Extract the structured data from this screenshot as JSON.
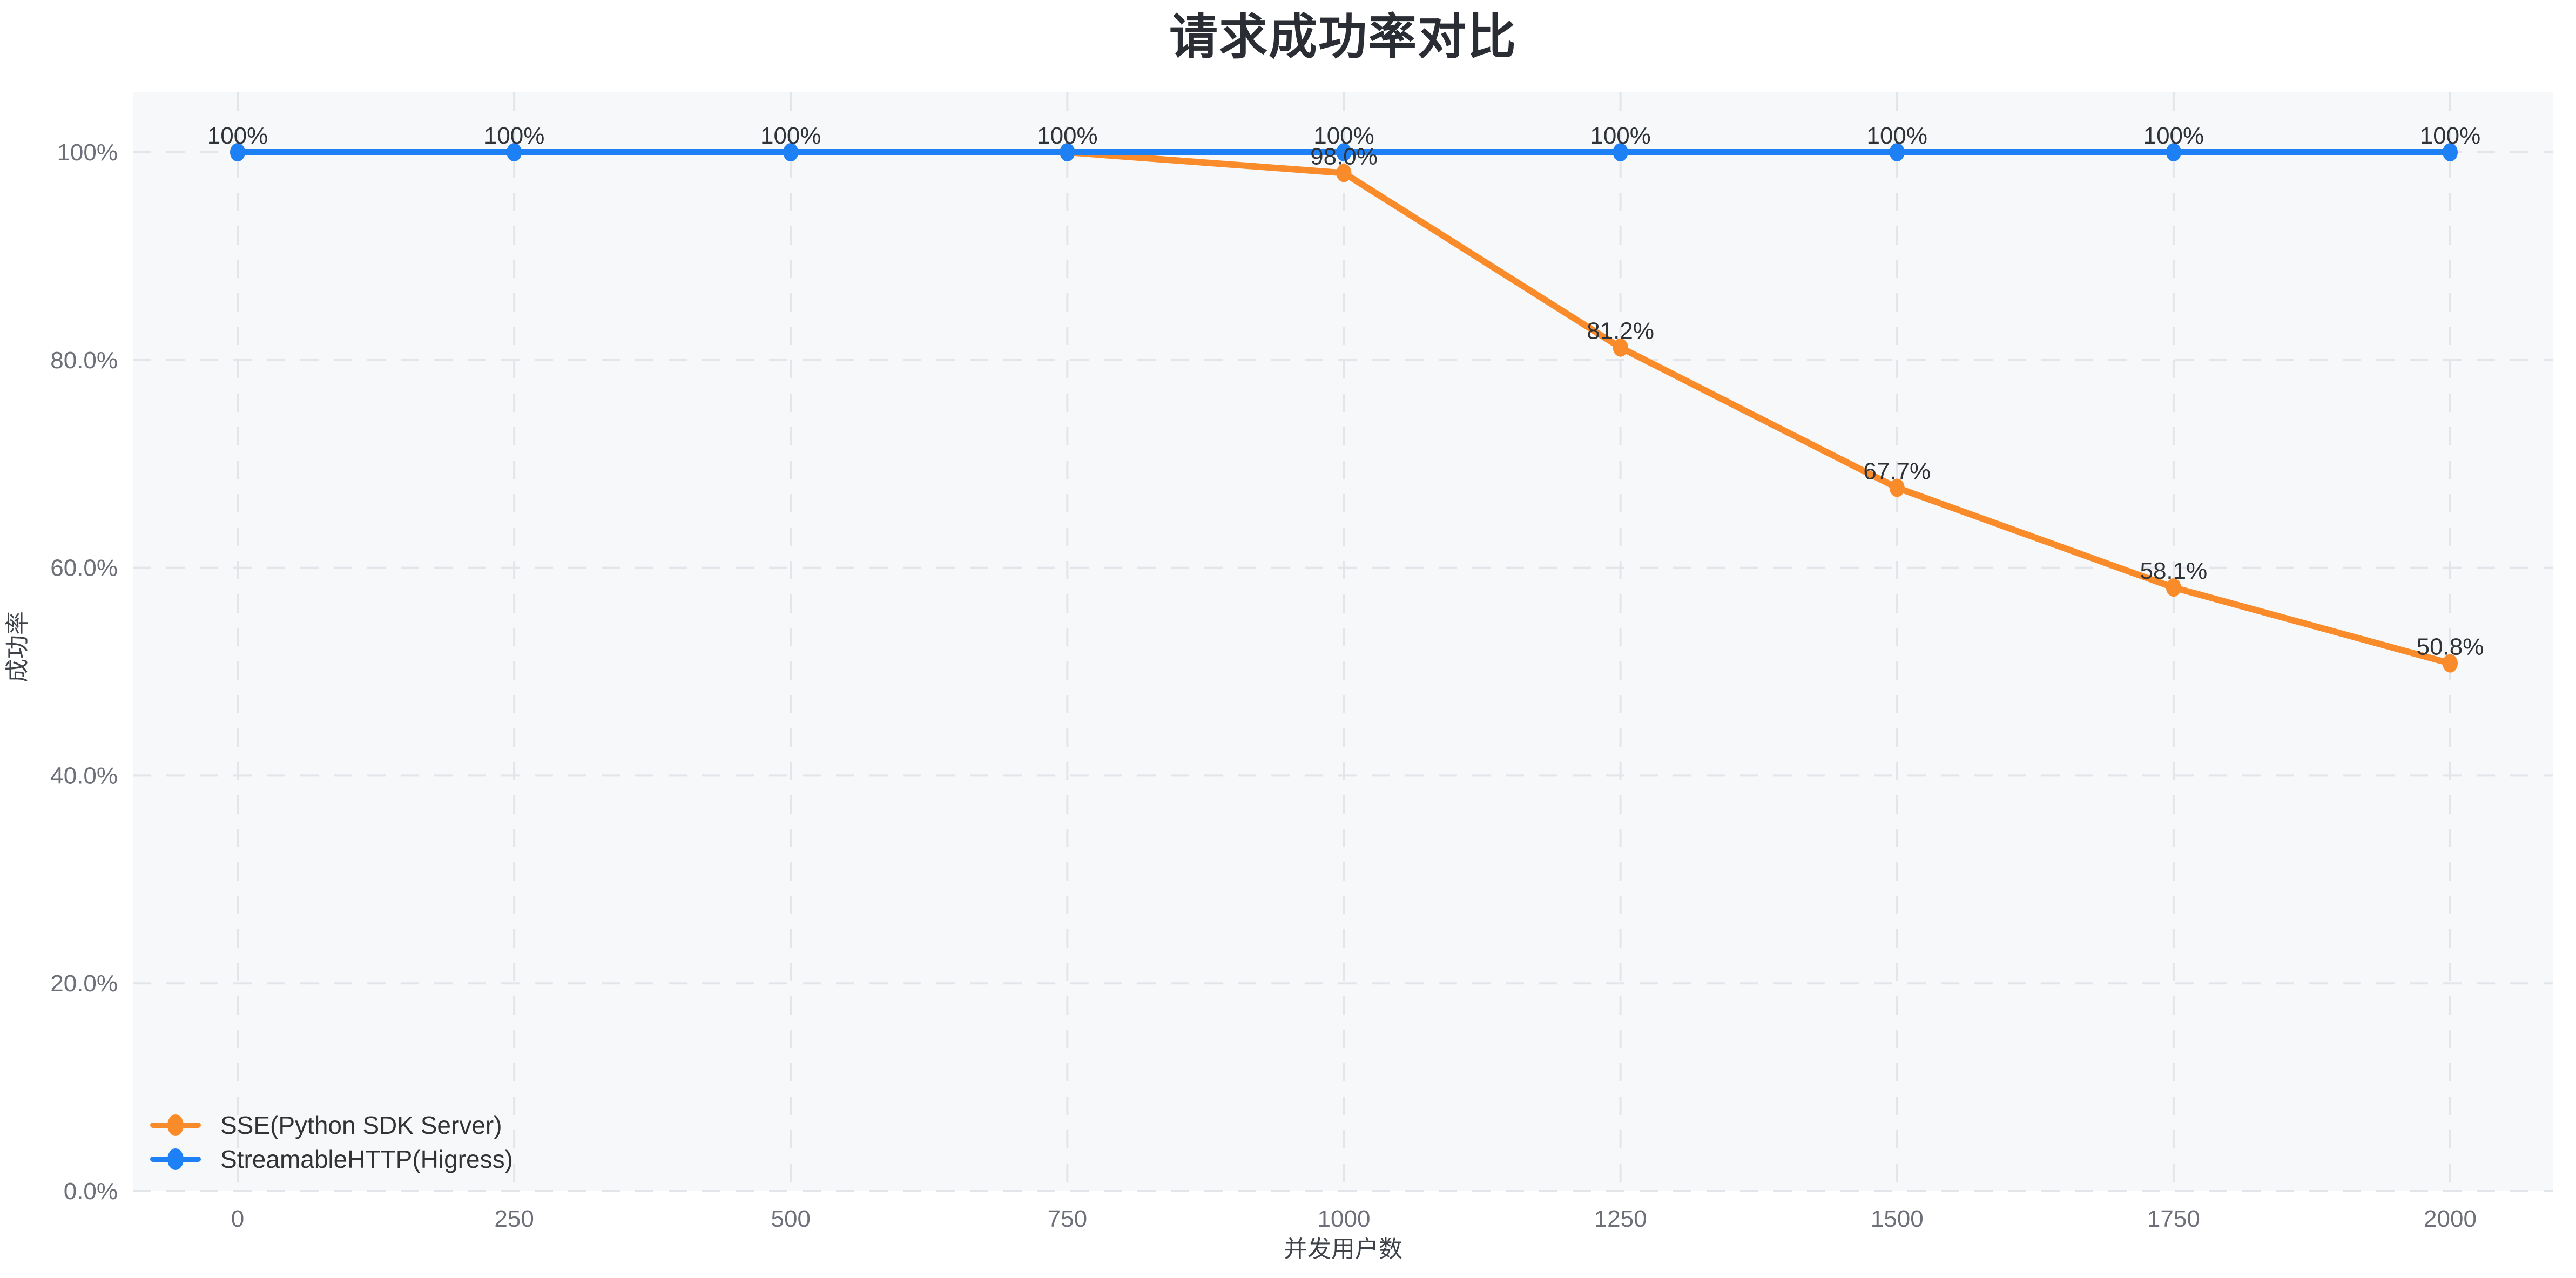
{
  "title": "请求成功率对比",
  "chart_data": {
    "type": "line",
    "title": "请求成功率对比",
    "xlabel": "并发用户数",
    "ylabel": "成功率",
    "x_categories": [
      "0",
      "250",
      "500",
      "750",
      "1000",
      "1250",
      "1500",
      "1750",
      "2000"
    ],
    "x_values": [
      0,
      250,
      500,
      750,
      1000,
      1250,
      1500,
      1750,
      2000
    ],
    "y_ticks": [
      "0.0%",
      "20.0%",
      "40.0%",
      "60.0%",
      "80.0%",
      "100%"
    ],
    "y_tick_values": [
      0,
      20,
      40,
      60,
      80,
      100
    ],
    "ylim": [
      0,
      100
    ],
    "grid": "dashed-both-axes",
    "legend_position": "bottom-left",
    "series": [
      {
        "name": "SSE(Python SDK Server)",
        "color": "#FA8B2A",
        "values": [
          100,
          100,
          100,
          100,
          98.0,
          81.2,
          67.7,
          58.1,
          50.8
        ],
        "labels": [
          "",
          "",
          "",
          "",
          "98.0%",
          "81.2%",
          "67.7%",
          "58.1%",
          "50.8%"
        ]
      },
      {
        "name": "StreamableHTTP(Higress)",
        "color": "#1E80F5",
        "values": [
          100,
          100,
          100,
          100,
          100,
          100,
          100,
          100,
          100
        ],
        "labels": [
          "100%",
          "100%",
          "100%",
          "100%",
          "100%",
          "100%",
          "100%",
          "100%",
          "100%"
        ]
      }
    ]
  },
  "colors": {
    "plot_background": "#F7F8FA",
    "gridline": "#E2E5EA",
    "tick_label": "#6E7079",
    "axis_title": "#3E4249",
    "data_label": "#2F3237",
    "title": "#2A2D33",
    "legend_text": "#333333",
    "series_sse": "#FA8B2A",
    "series_streamablehttp": "#1E80F5"
  }
}
